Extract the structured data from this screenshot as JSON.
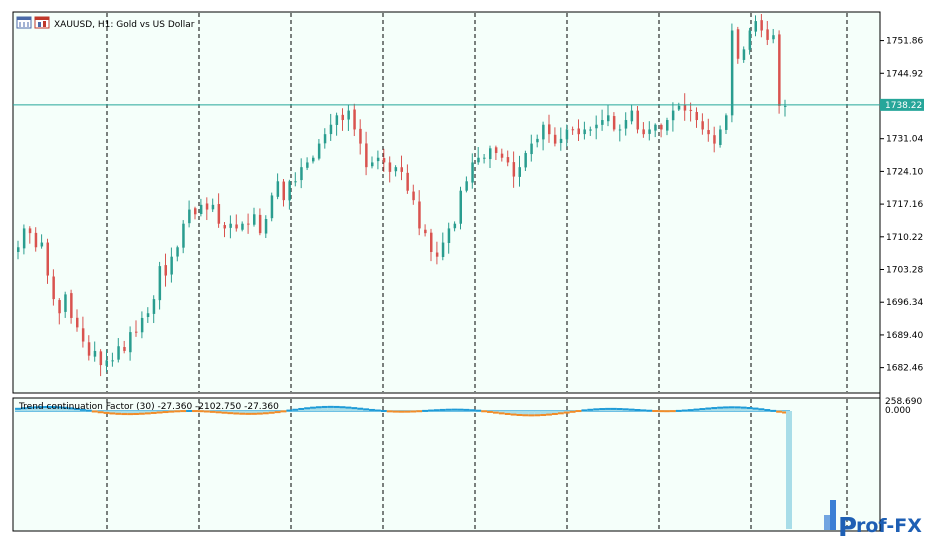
{
  "main_chart": {
    "symbol": "XAUUSD",
    "timeframe": "H1",
    "description": "Gold vs US Dollar",
    "title_text": "XAUUSD, H1:  Gold vs US Dollar",
    "current_price_label": "1738.22",
    "current_price": 1738.22,
    "price_axis_labels": [
      "1751.86",
      "1744.92",
      "1738.22",
      "1731.04",
      "1724.10",
      "1717.16",
      "1710.22",
      "1703.28",
      "1696.34",
      "1689.40",
      "1682.46"
    ]
  },
  "indicator": {
    "title_text": "Trend continuation Factor (30) -27.360 -2102.750 -27.360",
    "axis_labels": [
      "258.690",
      "0.000"
    ]
  },
  "watermark": {
    "text": "Prof-FX",
    "text_prefix": "P",
    "text_rest": "rof-FX"
  },
  "colors": {
    "background": "#f5fffa",
    "grid": "#000000",
    "bull_candle": "#2a9d8f",
    "bear_candle": "#d9534f",
    "price_line": "#26a69a",
    "price_tag_bg": "#26a69a",
    "tcf_positive": "#1e9bd7",
    "tcf_negative": "#f28c28",
    "tcf_fill": "#a8dde8"
  },
  "chart_data": {
    "type": "candlestick",
    "y_range": [
      1677.5,
      1757.5
    ],
    "indicator_range": [
      -2102.75,
      258.69
    ],
    "closes": [
      1708,
      1712,
      1711,
      1708,
      1709,
      1702,
      1697,
      1694,
      1698,
      1693,
      1691,
      1688,
      1685,
      1686,
      1683,
      1684,
      1684,
      1687,
      1686,
      1690,
      1690,
      1693,
      1694,
      1697,
      1704,
      1702,
      1706,
      1708,
      1713,
      1716,
      1715,
      1717,
      1716,
      1717,
      1713,
      1712,
      1713,
      1712,
      1713,
      1713,
      1715,
      1711,
      1714,
      1719,
      1722,
      1718,
      1722,
      1722,
      1725,
      1726,
      1727,
      1730,
      1732,
      1734,
      1736,
      1735,
      1737,
      1733,
      1730,
      1725,
      1726,
      1727,
      1726,
      1724,
      1725,
      1724,
      1720,
      1718,
      1712,
      1711,
      1707,
      1706,
      1709,
      1712,
      1713,
      1720,
      1722,
      1726,
      1727,
      1727,
      1729,
      1728,
      1727,
      1726,
      1723,
      1725,
      1728,
      1730,
      1731,
      1734,
      1732,
      1730,
      1731,
      1733,
      1733,
      1732,
      1733,
      1733,
      1734,
      1735,
      1736,
      1733,
      1733,
      1735,
      1737,
      1733,
      1732,
      1733,
      1734,
      1733,
      1735,
      1737,
      1738,
      1737,
      1737,
      1735,
      1733,
      1732,
      1730,
      1733,
      1736,
      1754,
      1748,
      1750,
      1754,
      1756,
      1754,
      1752,
      1753,
      1738,
      1738
    ]
  }
}
